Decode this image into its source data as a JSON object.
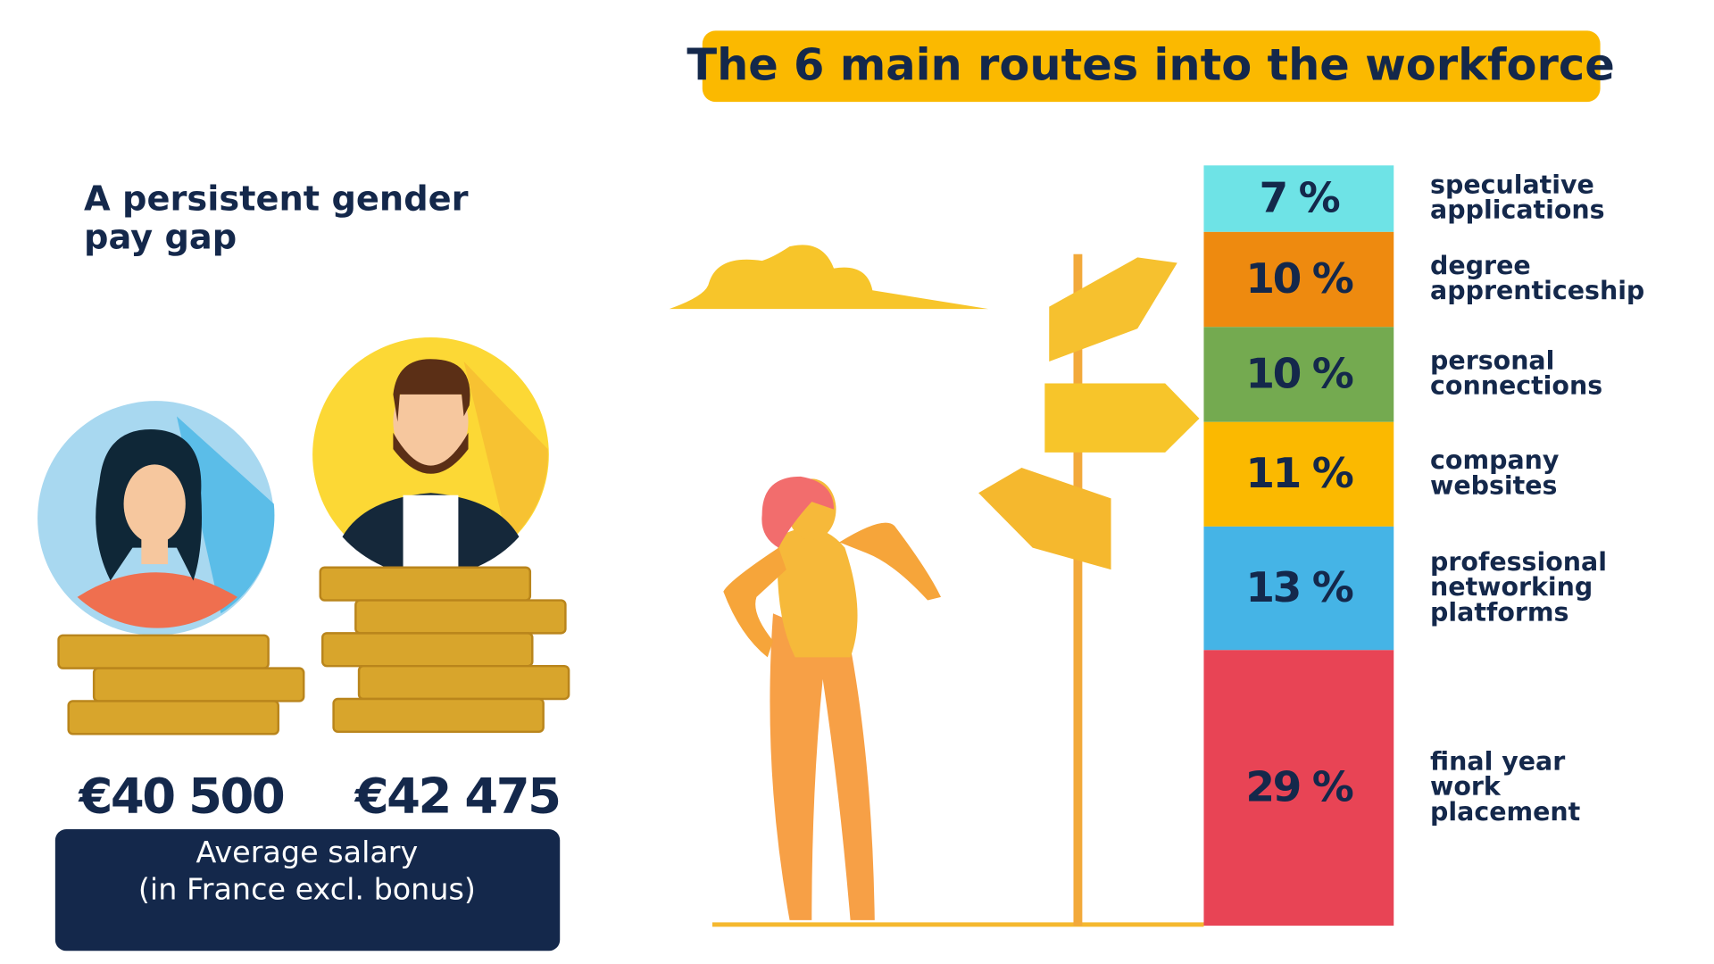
{
  "salary_panel": {
    "heading": "A persistent gender\npay gap",
    "salaries": [
      "€40 500",
      "€42 475"
    ],
    "caption": "Average salary\n(in France excl. bonus)"
  },
  "chart_data": {
    "type": "stacked-column",
    "title": "The 6 main routes into the workforce",
    "categories": [
      "speculative\napplications",
      "degree\napprenticeship",
      "personal\nconnections",
      "company\nwebsites",
      "professional\nnetworking\nplatforms",
      "final year\nwork\nplacement"
    ],
    "values": [
      7,
      10,
      10,
      11,
      13,
      29
    ],
    "value_labels": [
      "7 %",
      "10 %",
      "10 %",
      "11 %",
      "13 %",
      "29 %"
    ],
    "colors": [
      "#6ee3e6",
      "#ee8a0f",
      "#74aa50",
      "#fbb900",
      "#45b4e6",
      "#e84455"
    ]
  }
}
